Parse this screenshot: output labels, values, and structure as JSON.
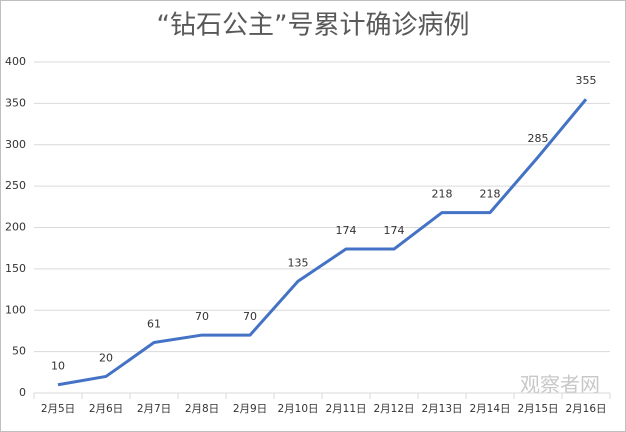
{
  "chart_data": {
    "type": "line",
    "title": "“钻石公主”号累计确诊病例",
    "categories": [
      "2月5日",
      "2月6日",
      "2月7日",
      "2月8日",
      "2月9日",
      "2月10日",
      "2月11日",
      "2月12日",
      "2月13日",
      "2月14日",
      "2月15日",
      "2月16日"
    ],
    "series": [
      {
        "name": "累计确诊病例",
        "color": "#4472c4",
        "values": [
          10,
          20,
          61,
          70,
          70,
          135,
          174,
          174,
          218,
          218,
          285,
          355
        ]
      }
    ],
    "ylim": [
      0,
      400
    ],
    "yticks": [
      0,
      50,
      100,
      150,
      200,
      250,
      300,
      350,
      400
    ],
    "grid": true,
    "watermark": "观察者网"
  }
}
